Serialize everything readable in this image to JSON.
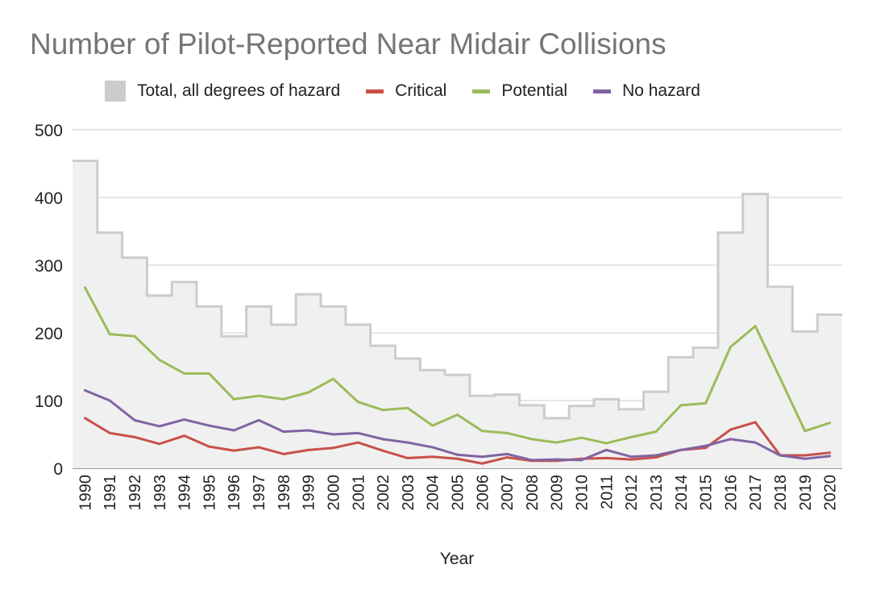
{
  "chart_data": {
    "type": "line",
    "title": "Number of Pilot-Reported Near Midair Collisions",
    "xlabel": "Year",
    "ylabel": "",
    "ylim": [
      0,
      500
    ],
    "yticks": [
      "0",
      "100",
      "200",
      "300",
      "400",
      "500"
    ],
    "grid": true,
    "legend_position": "top",
    "categories": [
      "1990",
      "1991",
      "1992",
      "1993",
      "1994",
      "1995",
      "1996",
      "1997",
      "1998",
      "1999",
      "2000",
      "2001",
      "2002",
      "2003",
      "2004",
      "2005",
      "2006",
      "2007",
      "2008",
      "2009",
      "2010",
      "2011",
      "2012",
      "2013",
      "2014",
      "2015",
      "2016",
      "2017",
      "2018",
      "2019",
      "2020"
    ],
    "series": [
      {
        "name": "Total, all degrees of hazard",
        "style": "stepped-area",
        "color": "#cccccc",
        "fill": "#f0f0f0",
        "values": [
          454,
          348,
          311,
          255,
          275,
          239,
          195,
          239,
          212,
          257,
          239,
          212,
          181,
          162,
          145,
          138,
          107,
          109,
          93,
          74,
          92,
          102,
          87,
          113,
          164,
          178,
          348,
          405,
          268,
          202,
          227
        ]
      },
      {
        "name": "Critical",
        "style": "line",
        "color": "#c9504a",
        "values": [
          74,
          52,
          46,
          36,
          48,
          32,
          26,
          31,
          21,
          27,
          30,
          38,
          26,
          15,
          17,
          14,
          7,
          16,
          11,
          11,
          14,
          15,
          13,
          16,
          27,
          30,
          57,
          68,
          19,
          19,
          23
        ]
      },
      {
        "name": "Potential",
        "style": "line",
        "color": "#9bbb59",
        "values": [
          267,
          198,
          195,
          160,
          140,
          140,
          102,
          107,
          102,
          112,
          132,
          98,
          86,
          89,
          63,
          79,
          55,
          52,
          43,
          38,
          45,
          37,
          46,
          54,
          93,
          96,
          179,
          210,
          133,
          55,
          67
        ]
      },
      {
        "name": "No hazard",
        "style": "line",
        "color": "#8064a2",
        "values": [
          115,
          100,
          71,
          62,
          72,
          63,
          56,
          71,
          54,
          56,
          50,
          52,
          43,
          38,
          31,
          20,
          17,
          21,
          12,
          13,
          12,
          27,
          17,
          19,
          27,
          33,
          43,
          38,
          19,
          14,
          18
        ]
      }
    ]
  }
}
